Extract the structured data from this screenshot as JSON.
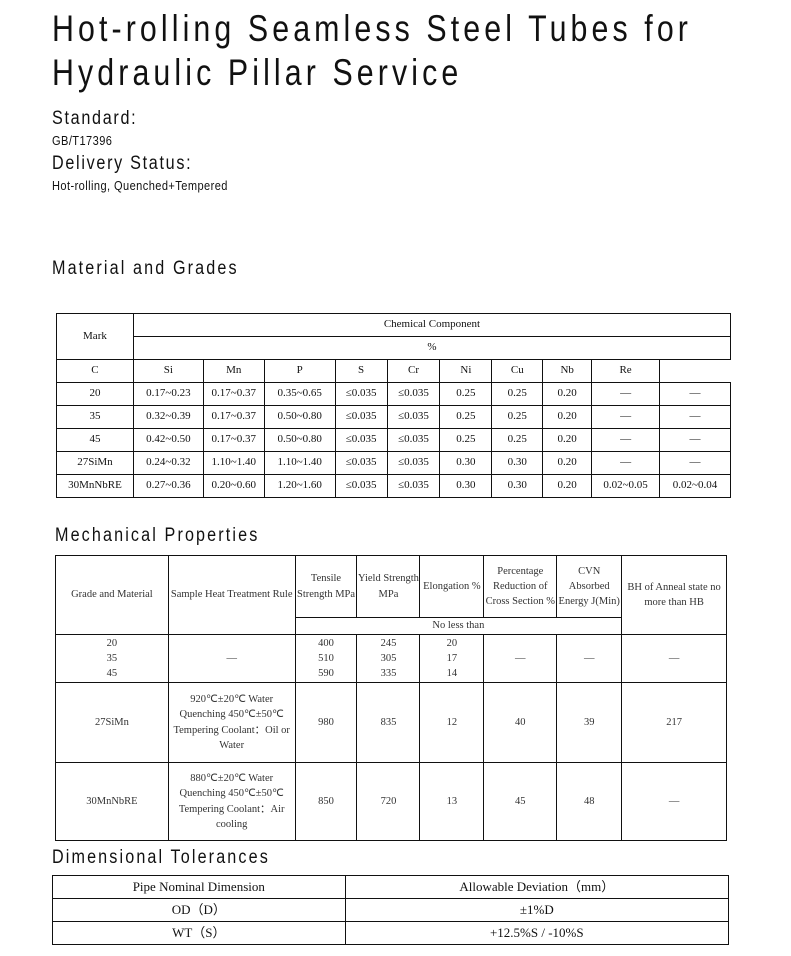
{
  "title_line1": "Hot-rolling Seamless Steel Tubes for",
  "title_line2": "Hydraulic Pillar Service",
  "standard_label": "Standard:",
  "standard_value": "GB/T17396",
  "delivery_label": "Delivery Status:",
  "delivery_value": "Hot-rolling, Quenched+Tempered",
  "section1": "Material and Grades",
  "chem": {
    "mark": "Mark",
    "group": "Chemical Component",
    "unit": "%",
    "cols": [
      "C",
      "Si",
      "Mn",
      "P",
      "S",
      "Cr",
      "Ni",
      "Cu",
      "Nb",
      "Re"
    ],
    "rows": [
      [
        "20",
        "0.17~0.23",
        "0.17~0.37",
        "0.35~0.65",
        "≤0.035",
        "≤0.035",
        "0.25",
        "0.25",
        "0.20",
        "—",
        "—"
      ],
      [
        "35",
        "0.32~0.39",
        "0.17~0.37",
        "0.50~0.80",
        "≤0.035",
        "≤0.035",
        "0.25",
        "0.25",
        "0.20",
        "—",
        "—"
      ],
      [
        "45",
        "0.42~0.50",
        "0.17~0.37",
        "0.50~0.80",
        "≤0.035",
        "≤0.035",
        "0.25",
        "0.25",
        "0.20",
        "—",
        "—"
      ],
      [
        "27SiMn",
        "0.24~0.32",
        "1.10~1.40",
        "1.10~1.40",
        "≤0.035",
        "≤0.035",
        "0.30",
        "0.30",
        "0.20",
        "—",
        "—"
      ],
      [
        "30MnNbRE",
        "0.27~0.36",
        "0.20~0.60",
        "1.20~1.60",
        "≤0.035",
        "≤0.035",
        "0.30",
        "0.30",
        "0.20",
        "0.02~0.05",
        "0.02~0.04"
      ]
    ]
  },
  "section2": "Mechanical Properties",
  "mech": {
    "headers": [
      "Grade and Material",
      "Sample Heat Treatment Rule",
      "Tensile Strength MPa",
      "Yield Strength MPa",
      "Elongation %",
      "Percentage Reduction of Cross Section %",
      "CVN Absorbed Energy J(Min)",
      "BH of Anneal state no more than HB"
    ],
    "sub": "No less than",
    "rows": [
      [
        "20\n35\n45",
        "—",
        "400\n510\n590",
        "245\n305\n335",
        "20\n17\n14",
        "—",
        "—",
        "—"
      ],
      [
        "27SiMn",
        "920℃±20℃ Water Quenching 450℃±50℃ Tempering Coolant：Oil or Water",
        "980",
        "835",
        "12",
        "40",
        "39",
        "217"
      ],
      [
        "30MnNbRE",
        "880℃±20℃ Water Quenching 450℃±50℃ Tempering Coolant：Air cooling",
        "850",
        "720",
        "13",
        "45",
        "48",
        "—"
      ]
    ]
  },
  "section3": "Dimensional Tolerances",
  "dim": {
    "headers": [
      "Pipe Nominal Dimension",
      "Allowable Deviation（mm）"
    ],
    "rows": [
      [
        "OD（D）",
        "±1%D"
      ],
      [
        "WT（S）",
        "+12.5%S / -10%S"
      ]
    ]
  }
}
